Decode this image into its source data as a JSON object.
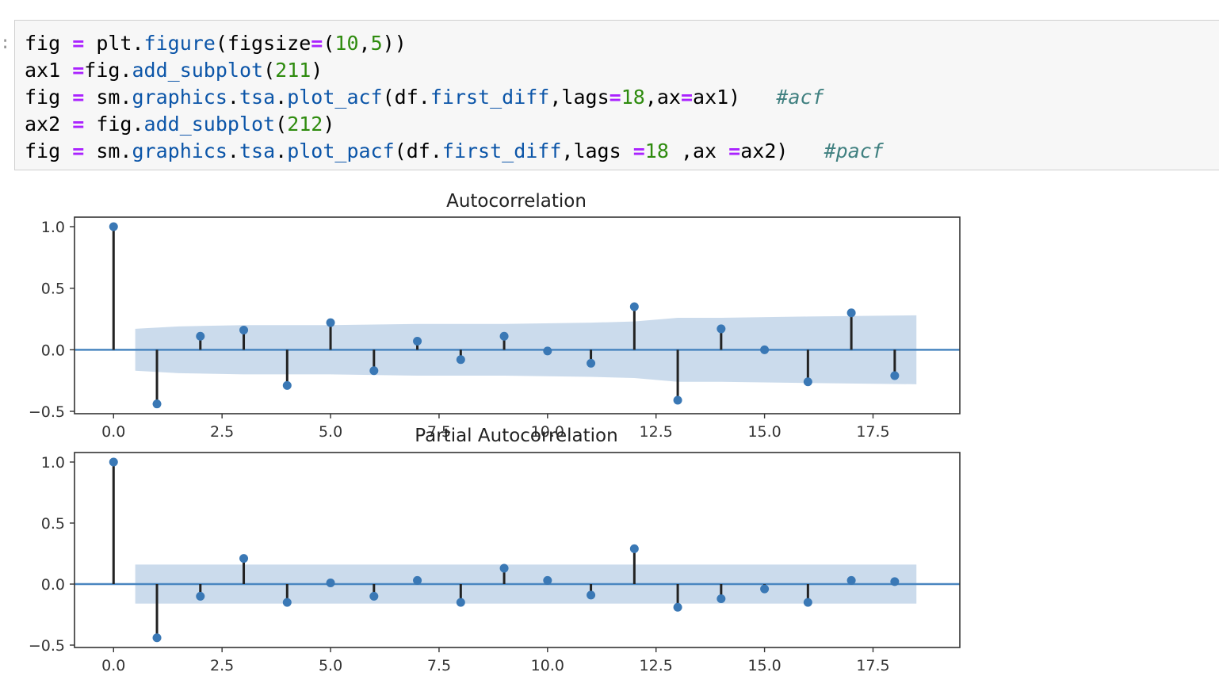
{
  "code_cell": {
    "lines": [
      [
        {
          "t": "fig ",
          "c": "var"
        },
        {
          "t": "=",
          "c": "op"
        },
        {
          "t": " plt.",
          "c": "plain"
        },
        {
          "t": "figure",
          "c": "attr"
        },
        {
          "t": "(figsize",
          "c": "plain"
        },
        {
          "t": "=",
          "c": "op"
        },
        {
          "t": "(",
          "c": "plain"
        },
        {
          "t": "10",
          "c": "num"
        },
        {
          "t": ",",
          "c": "plain"
        },
        {
          "t": "5",
          "c": "num"
        },
        {
          "t": "))",
          "c": "plain"
        }
      ],
      [
        {
          "t": "ax1 ",
          "c": "var"
        },
        {
          "t": "=",
          "c": "op"
        },
        {
          "t": "fig.",
          "c": "plain"
        },
        {
          "t": "add_subplot",
          "c": "attr"
        },
        {
          "t": "(",
          "c": "plain"
        },
        {
          "t": "211",
          "c": "num"
        },
        {
          "t": ")",
          "c": "plain"
        }
      ],
      [
        {
          "t": "fig ",
          "c": "var"
        },
        {
          "t": "=",
          "c": "op"
        },
        {
          "t": " sm.",
          "c": "plain"
        },
        {
          "t": "graphics",
          "c": "attr"
        },
        {
          "t": ".",
          "c": "plain"
        },
        {
          "t": "tsa",
          "c": "attr"
        },
        {
          "t": ".",
          "c": "plain"
        },
        {
          "t": "plot_acf",
          "c": "attr"
        },
        {
          "t": "(df.",
          "c": "plain"
        },
        {
          "t": "first_diff",
          "c": "attr"
        },
        {
          "t": ",lags",
          "c": "plain"
        },
        {
          "t": "=",
          "c": "op"
        },
        {
          "t": "18",
          "c": "num"
        },
        {
          "t": ",ax",
          "c": "plain"
        },
        {
          "t": "=",
          "c": "op"
        },
        {
          "t": "ax1)   ",
          "c": "plain"
        },
        {
          "t": "#acf",
          "c": "cmt"
        }
      ],
      [
        {
          "t": "ax2 ",
          "c": "var"
        },
        {
          "t": "=",
          "c": "op"
        },
        {
          "t": " fig.",
          "c": "plain"
        },
        {
          "t": "add_subplot",
          "c": "attr"
        },
        {
          "t": "(",
          "c": "plain"
        },
        {
          "t": "212",
          "c": "num"
        },
        {
          "t": ")",
          "c": "plain"
        }
      ],
      [
        {
          "t": "fig ",
          "c": "var"
        },
        {
          "t": "=",
          "c": "op"
        },
        {
          "t": " sm.",
          "c": "plain"
        },
        {
          "t": "graphics",
          "c": "attr"
        },
        {
          "t": ".",
          "c": "plain"
        },
        {
          "t": "tsa",
          "c": "attr"
        },
        {
          "t": ".",
          "c": "plain"
        },
        {
          "t": "plot_pacf",
          "c": "attr"
        },
        {
          "t": "(df.",
          "c": "plain"
        },
        {
          "t": "first_diff",
          "c": "attr"
        },
        {
          "t": ",lags ",
          "c": "plain"
        },
        {
          "t": "=",
          "c": "op"
        },
        {
          "t": "18",
          "c": "num"
        },
        {
          "t": " ,ax ",
          "c": "plain"
        },
        {
          "t": "=",
          "c": "op"
        },
        {
          "t": "ax2)   ",
          "c": "plain"
        },
        {
          "t": "#pacf",
          "c": "cmt"
        }
      ]
    ]
  },
  "colors": {
    "marker": "#3a78b5",
    "stem": "#222222",
    "zero_line": "#4a86c0",
    "confidence_band": "#c5d7ea",
    "axis": "#333333"
  },
  "chart_data": [
    {
      "type": "stem",
      "title": "Autocorrelation",
      "xlabel": "",
      "ylabel": "",
      "xlim": [
        -0.9,
        19.5
      ],
      "ylim": [
        -0.5,
        1.0
      ],
      "xticks": [
        0.0,
        2.5,
        5.0,
        7.5,
        10.0,
        12.5,
        15.0,
        17.5
      ],
      "xtick_labels": [
        "0.0",
        "2.5",
        "5.0",
        "7.5",
        "10.0",
        "12.5",
        "15.0",
        "17.5"
      ],
      "yticks": [
        -0.5,
        0.0,
        0.5,
        1.0
      ],
      "ytick_labels": [
        "−0.5",
        "0.0",
        "0.5",
        "1.0"
      ],
      "x": [
        0,
        1,
        2,
        3,
        4,
        5,
        6,
        7,
        8,
        9,
        10,
        11,
        12,
        13,
        14,
        15,
        16,
        17,
        18
      ],
      "values": [
        1.0,
        -0.44,
        0.11,
        0.16,
        -0.29,
        0.22,
        -0.17,
        0.07,
        -0.08,
        0.11,
        -0.01,
        -0.11,
        0.35,
        -0.41,
        0.17,
        0.0,
        -0.26,
        0.3,
        -0.21
      ],
      "confidence_band": {
        "x": [
          0.5,
          1.5,
          3,
          5,
          7,
          9,
          11,
          12,
          13,
          14,
          16,
          18.5
        ],
        "upper": [
          0.17,
          0.19,
          0.2,
          0.2,
          0.21,
          0.21,
          0.22,
          0.23,
          0.26,
          0.26,
          0.27,
          0.28
        ],
        "lower": [
          -0.17,
          -0.19,
          -0.2,
          -0.2,
          -0.21,
          -0.21,
          -0.22,
          -0.23,
          -0.26,
          -0.26,
          -0.27,
          -0.28
        ]
      }
    },
    {
      "type": "stem",
      "title": "Partial Autocorrelation",
      "xlabel": "",
      "ylabel": "",
      "xlim": [
        -0.9,
        19.5
      ],
      "ylim": [
        -0.5,
        1.0
      ],
      "xticks": [
        0.0,
        2.5,
        5.0,
        7.5,
        10.0,
        12.5,
        15.0,
        17.5
      ],
      "xtick_labels": [
        "0.0",
        "2.5",
        "5.0",
        "7.5",
        "10.0",
        "12.5",
        "15.0",
        "17.5"
      ],
      "yticks": [
        -0.5,
        0.0,
        0.5,
        1.0
      ],
      "ytick_labels": [
        "−0.5",
        "0.0",
        "0.5",
        "1.0"
      ],
      "x": [
        0,
        1,
        2,
        3,
        4,
        5,
        6,
        7,
        8,
        9,
        10,
        11,
        12,
        13,
        14,
        15,
        16,
        17,
        18
      ],
      "values": [
        1.0,
        -0.44,
        -0.1,
        0.21,
        -0.15,
        0.01,
        -0.1,
        0.03,
        -0.15,
        0.13,
        0.03,
        -0.09,
        0.29,
        -0.19,
        -0.12,
        -0.04,
        -0.15,
        0.03,
        0.02
      ],
      "confidence_band": {
        "x": [
          0.5,
          18.5
        ],
        "upper": [
          0.16,
          0.16
        ],
        "lower": [
          -0.16,
          -0.16
        ]
      }
    }
  ]
}
